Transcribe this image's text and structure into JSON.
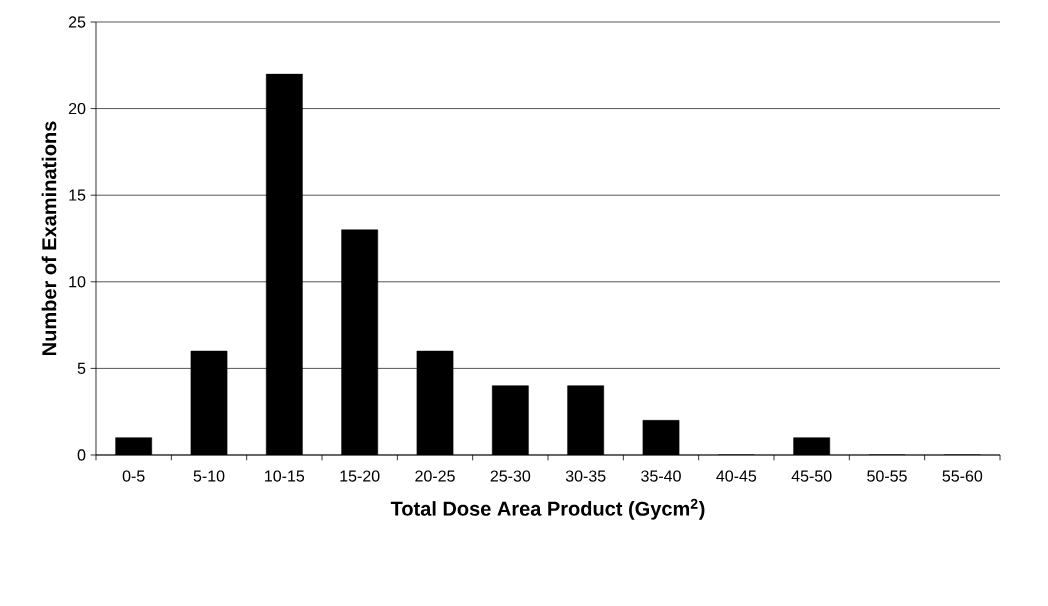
{
  "chart_data": {
    "type": "bar",
    "xlabel": "Total Dose Area Product (Gycm$^{2}$)",
    "ylabel": "Number of Examinations",
    "categories": [
      "0-5",
      "5-10",
      "10-15",
      "15-20",
      "20-25",
      "25-30",
      "30-35",
      "35-40",
      "40-45",
      "45-50",
      "50-55",
      "55-60"
    ],
    "values": [
      1,
      6,
      22,
      13,
      6,
      4,
      4,
      2,
      0,
      1,
      0,
      0
    ],
    "color": "#000000",
    "ylim": [
      0,
      25
    ],
    "yticks": [
      0,
      5,
      10,
      15,
      20,
      25
    ],
    "grid": "y"
  }
}
